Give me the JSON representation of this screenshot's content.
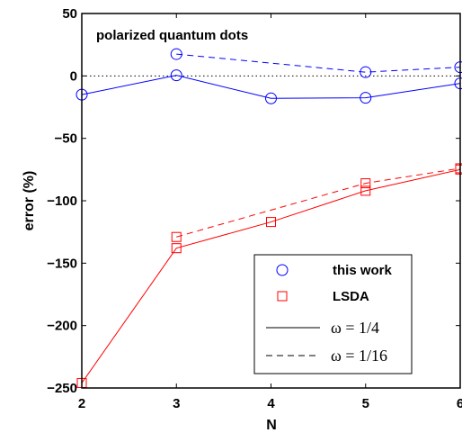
{
  "chart_data": {
    "type": "line",
    "annotation": "polarized quantum dots",
    "xlabel": "N",
    "ylabel": "error (%)",
    "xlim": [
      2,
      6
    ],
    "ylim": [
      -250,
      50
    ],
    "xticks": [
      "2",
      "3",
      "4",
      "5",
      "6"
    ],
    "yticks": [
      "50",
      "0",
      "−50",
      "−100",
      "−150",
      "−200",
      "−250"
    ],
    "reference_line": {
      "y": 0,
      "style": "dotted"
    },
    "series": [
      {
        "method": "this work",
        "omega": "1/4",
        "style": "solid",
        "marker": "circle",
        "color": "#0000ff",
        "x": [
          2,
          3,
          4,
          5,
          6
        ],
        "y": [
          -15,
          0.5,
          -18,
          -17.5,
          -6
        ]
      },
      {
        "method": "this work",
        "omega": "1/16",
        "style": "dashed",
        "marker": "circle",
        "color": "#0000ff",
        "x": [
          3,
          5,
          6
        ],
        "y": [
          17.5,
          3,
          7
        ]
      },
      {
        "method": "LSDA",
        "omega": "1/4",
        "style": "solid",
        "marker": "square",
        "color": "#ff0000",
        "x": [
          2,
          3,
          4,
          5,
          6
        ],
        "y": [
          -246,
          -138,
          -117,
          -92,
          -75
        ]
      },
      {
        "method": "LSDA",
        "omega": "1/16",
        "style": "dashed",
        "marker": "square",
        "color": "#ff0000",
        "x": [
          3,
          5,
          6
        ],
        "y": [
          -129,
          -86,
          -74
        ]
      }
    ],
    "legend": {
      "placement": "bottom-right",
      "entries": [
        {
          "label": "this work",
          "kind": "marker",
          "marker": "circle",
          "color": "#0000ff"
        },
        {
          "label": "LSDA",
          "kind": "marker",
          "marker": "square",
          "color": "#ff0000"
        },
        {
          "label": "ω = 1/4",
          "kind": "line",
          "style": "solid",
          "color": "#000000"
        },
        {
          "label": "ω = 1/16",
          "kind": "line",
          "style": "dashed",
          "color": "#000000"
        }
      ]
    }
  }
}
